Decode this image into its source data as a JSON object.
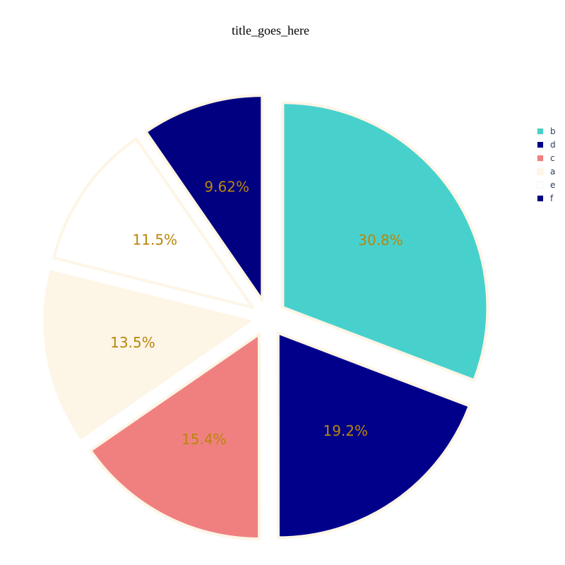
{
  "chart_data": {
    "type": "pie",
    "title": "title_goes_here",
    "categories": [
      "b",
      "d",
      "c",
      "a",
      "e",
      "f"
    ],
    "values": [
      30.8,
      19.2,
      15.4,
      13.5,
      11.5,
      9.62
    ],
    "labels": [
      "30.8%",
      "19.2%",
      "15.4%",
      "13.5%",
      "11.5%",
      "9.62%"
    ],
    "colors": [
      "#48d1cc",
      "#00008b",
      "#f08080",
      "#fdf5e6",
      "#ffffff",
      "#000080"
    ],
    "slice_border_color": "#fdf5e6",
    "label_color": "#b8860b",
    "exploded": true,
    "legend_position": "top-right"
  },
  "legend": {
    "items": [
      {
        "label": "b",
        "color": "#48d1cc"
      },
      {
        "label": "d",
        "color": "#00008b"
      },
      {
        "label": "c",
        "color": "#f08080"
      },
      {
        "label": "a",
        "color": "#fdf5e6"
      },
      {
        "label": "e",
        "color": "#ffffff"
      },
      {
        "label": "f",
        "color": "#000080"
      }
    ]
  }
}
